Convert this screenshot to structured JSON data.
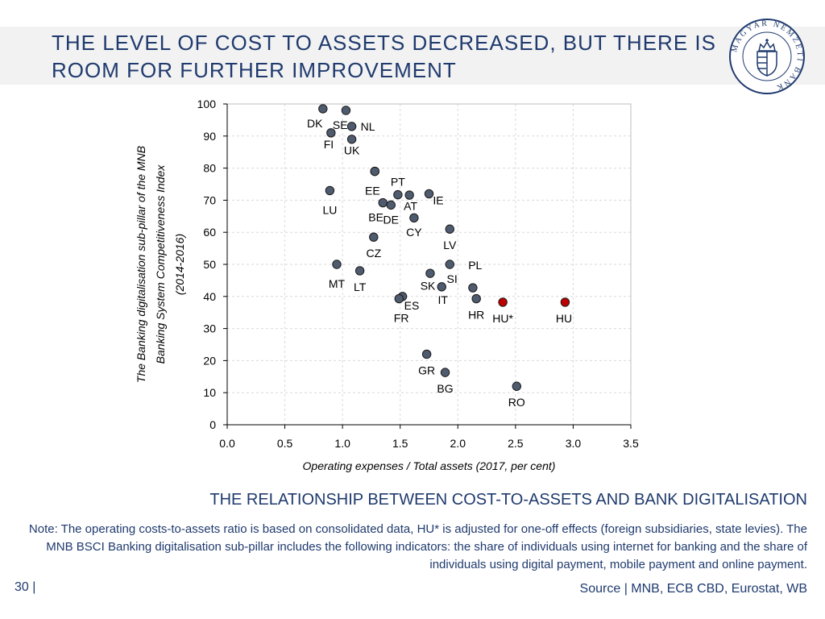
{
  "slide": {
    "title": "THE LEVEL OF COST TO ASSETS DECREASED, BUT THERE IS ROOM FOR FURTHER IMPROVEMENT",
    "chart_caption": "THE RELATIONSHIP BETWEEN COST-TO-ASSETS AND BANK DIGITALISATION",
    "note": "Note: The operating costs-to-assets ratio is based on consolidated data, HU* is adjusted for one-off effects (foreign subsidiaries, state levies). The MNB BSCI Banking digitalisation sub-pillar includes the following indicators: the share of individuals using internet for banking and the share of individuals using digital payment, mobile payment and online payment.",
    "page_number": "30 |",
    "source": "Source | MNB, ECB CBD, Eurostat, WB",
    "logo_text": "MAGYAR NEMZETI BANK"
  },
  "colors": {
    "title": "#1f3a6e",
    "point": "#4f5b6e",
    "highlight": "#c00000"
  },
  "chart_data": {
    "type": "scatter",
    "xlabel": "Operating expenses / Total assets (2017, per cent)",
    "ylabel_line1": "The Banking digitalisation sub-pillar of the MNB",
    "ylabel_line2": "Banking System Competitiveness Index",
    "ylabel_line3": "(2014-2016)",
    "xlim": [
      0,
      3.5
    ],
    "ylim": [
      0,
      100
    ],
    "x_ticks": [
      "0.0",
      "0.5",
      "1.0",
      "1.5",
      "2.0",
      "2.5",
      "3.0",
      "3.5"
    ],
    "y_ticks": [
      "0",
      "10",
      "20",
      "30",
      "40",
      "50",
      "60",
      "70",
      "80",
      "90",
      "100"
    ],
    "grid": true,
    "points": [
      {
        "label": "DK",
        "x": 0.83,
        "y": 98.5,
        "lx": -0.07,
        "ly": -4.5
      },
      {
        "label": "SE",
        "x": 1.03,
        "y": 98.0,
        "lx": -0.05,
        "ly": -4.5
      },
      {
        "label": "NL",
        "x": 1.08,
        "y": 93.0,
        "lx": 0.14,
        "ly": 0
      },
      {
        "label": "FI",
        "x": 0.9,
        "y": 91.0,
        "lx": -0.02,
        "ly": -3.5
      },
      {
        "label": "UK",
        "x": 1.08,
        "y": 89.0,
        "lx": 0,
        "ly": -3.5
      },
      {
        "label": "PT",
        "x": 1.28,
        "y": 79.0,
        "lx": 0.2,
        "ly": -3.2
      },
      {
        "label": "EE",
        "x": 1.28,
        "y": 79.0,
        "lx": -0.02,
        "ly": -6.0
      },
      {
        "label": "LU",
        "x": 0.89,
        "y": 73.0,
        "lx": 0,
        "ly": -6.0
      },
      {
        "label": "AT",
        "x": 1.48,
        "y": 71.7,
        "lx": 0.11,
        "ly": -3.5
      },
      {
        "label": "",
        "x": 1.58,
        "y": 71.6,
        "lx": 0,
        "ly": 0
      },
      {
        "label": "IE",
        "x": 1.75,
        "y": 72.0,
        "lx": 0.08,
        "ly": -2.0
      },
      {
        "label": "BE",
        "x": 1.35,
        "y": 69.2,
        "lx": -0.06,
        "ly": -4.5
      },
      {
        "label": "DE",
        "x": 1.42,
        "y": 68.5,
        "lx": 0,
        "ly": -4.5
      },
      {
        "label": "CY",
        "x": 1.62,
        "y": 64.5,
        "lx": 0,
        "ly": -4.5
      },
      {
        "label": "LV",
        "x": 1.93,
        "y": 61.0,
        "lx": 0,
        "ly": -5.0
      },
      {
        "label": "CZ",
        "x": 1.27,
        "y": 58.5,
        "lx": 0,
        "ly": -5.0
      },
      {
        "label": "MT",
        "x": 0.95,
        "y": 50.0,
        "lx": 0,
        "ly": -6.0
      },
      {
        "label": "LT",
        "x": 1.15,
        "y": 48.0,
        "lx": 0,
        "ly": -5.0
      },
      {
        "label": "SI",
        "x": 1.93,
        "y": 50.0,
        "lx": 0.02,
        "ly": -4.5
      },
      {
        "label": "PL",
        "x": 2.13,
        "y": 42.7,
        "lx": 0.02,
        "ly": 7.0
      },
      {
        "label": "SK",
        "x": 1.76,
        "y": 47.2,
        "lx": -0.02,
        "ly": -3.8
      },
      {
        "label": "IT",
        "x": 1.86,
        "y": 43.0,
        "lx": 0.01,
        "ly": -4.0
      },
      {
        "label": "ES",
        "x": 1.52,
        "y": 40.0,
        "lx": 0.08,
        "ly": -2.8
      },
      {
        "label": "FR",
        "x": 1.49,
        "y": 39.3,
        "lx": 0.02,
        "ly": -6.0
      },
      {
        "label": "HR",
        "x": 2.16,
        "y": 39.3,
        "lx": 0,
        "ly": -5.0
      },
      {
        "label": "GR",
        "x": 1.73,
        "y": 22.0,
        "lx": 0,
        "ly": -5.0
      },
      {
        "label": "BG",
        "x": 1.89,
        "y": 16.3,
        "lx": 0,
        "ly": -5.0
      },
      {
        "label": "RO",
        "x": 2.51,
        "y": 12.0,
        "lx": 0,
        "ly": -5.0
      },
      {
        "label": "HU*",
        "x": 2.39,
        "y": 38.2,
        "lx": 0,
        "ly": -5.0,
        "highlight": true
      },
      {
        "label": "HU",
        "x": 2.93,
        "y": 38.2,
        "lx": -0.01,
        "ly": -5.0,
        "highlight": true
      }
    ]
  }
}
